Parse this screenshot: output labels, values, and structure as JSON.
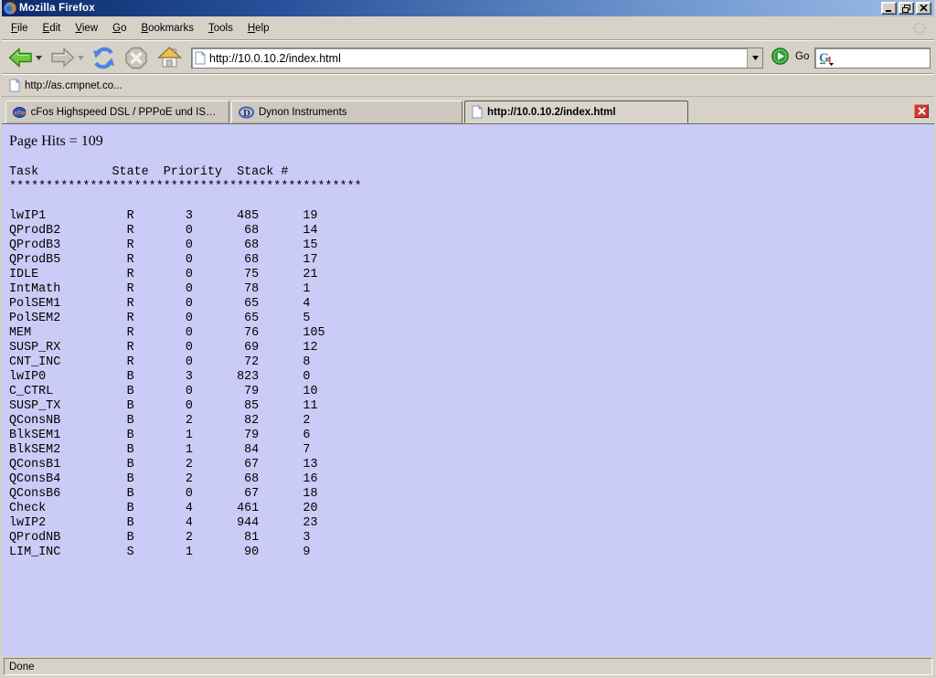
{
  "window": {
    "title": "Mozilla Firefox",
    "controls": [
      "minimize",
      "restore",
      "close"
    ],
    "status": "Done"
  },
  "menu_bar": {
    "items": [
      "File",
      "Edit",
      "View",
      "Go",
      "Bookmarks",
      "Tools",
      "Help"
    ]
  },
  "nav_toolbar": {
    "url_value": "http://10.0.10.2/index.html",
    "go_label": "Go",
    "icons": [
      "back-icon",
      "forward-icon",
      "reload-icon",
      "stop-icon",
      "home-icon",
      "go-icon",
      "google-search-icon"
    ]
  },
  "bookmarks_bar": {
    "items": [
      "http://as.cmpnet.co..."
    ]
  },
  "tab_bar": {
    "tabs": [
      {
        "id": "cfos",
        "icon": "cfos-icon",
        "label": "cFos Highspeed DSL / PPPoE und ISDN CAP...",
        "active": false
      },
      {
        "id": "dynon",
        "icon": "dynon-icon",
        "label": "Dynon Instruments",
        "active": false
      },
      {
        "id": "current",
        "icon": "page-icon",
        "label": "http://10.0.10.2/index.html",
        "active": true
      }
    ]
  },
  "page": {
    "page_hits": "Page Hits = 109",
    "table": {
      "header": {
        "task": "Task",
        "state": "State",
        "priority": "Priority",
        "stack": "Stack #"
      },
      "separator": "************************************************",
      "rows": [
        {
          "task": "lwIP1",
          "state": "R",
          "priority": "3",
          "stack": "485",
          "num": "19"
        },
        {
          "task": "QProdB2",
          "state": "R",
          "priority": "0",
          "stack": "68",
          "num": "14"
        },
        {
          "task": "QProdB3",
          "state": "R",
          "priority": "0",
          "stack": "68",
          "num": "15"
        },
        {
          "task": "QProdB5",
          "state": "R",
          "priority": "0",
          "stack": "68",
          "num": "17"
        },
        {
          "task": "IDLE",
          "state": "R",
          "priority": "0",
          "stack": "75",
          "num": "21"
        },
        {
          "task": "IntMath",
          "state": "R",
          "priority": "0",
          "stack": "78",
          "num": "1"
        },
        {
          "task": "PolSEM1",
          "state": "R",
          "priority": "0",
          "stack": "65",
          "num": "4"
        },
        {
          "task": "PolSEM2",
          "state": "R",
          "priority": "0",
          "stack": "65",
          "num": "5"
        },
        {
          "task": "MEM",
          "state": "R",
          "priority": "0",
          "stack": "76",
          "num": "105"
        },
        {
          "task": "SUSP_RX",
          "state": "R",
          "priority": "0",
          "stack": "69",
          "num": "12"
        },
        {
          "task": "CNT_INC",
          "state": "R",
          "priority": "0",
          "stack": "72",
          "num": "8"
        },
        {
          "task": "lwIP0",
          "state": "B",
          "priority": "3",
          "stack": "823",
          "num": "0"
        },
        {
          "task": "C_CTRL",
          "state": "B",
          "priority": "0",
          "stack": "79",
          "num": "10"
        },
        {
          "task": "SUSP_TX",
          "state": "B",
          "priority": "0",
          "stack": "85",
          "num": "11"
        },
        {
          "task": "QConsNB",
          "state": "B",
          "priority": "2",
          "stack": "82",
          "num": "2"
        },
        {
          "task": "BlkSEM1",
          "state": "B",
          "priority": "1",
          "stack": "79",
          "num": "6"
        },
        {
          "task": "BlkSEM2",
          "state": "B",
          "priority": "1",
          "stack": "84",
          "num": "7"
        },
        {
          "task": "QConsB1",
          "state": "B",
          "priority": "2",
          "stack": "67",
          "num": "13"
        },
        {
          "task": "QConsB4",
          "state": "B",
          "priority": "2",
          "stack": "68",
          "num": "16"
        },
        {
          "task": "QConsB6",
          "state": "B",
          "priority": "0",
          "stack": "67",
          "num": "18"
        },
        {
          "task": "Check",
          "state": "B",
          "priority": "4",
          "stack": "461",
          "num": "20"
        },
        {
          "task": "lwIP2",
          "state": "B",
          "priority": "4",
          "stack": "944",
          "num": "23"
        },
        {
          "task": "QProdNB",
          "state": "B",
          "priority": "2",
          "stack": "81",
          "num": "3"
        },
        {
          "task": "LIM_INC",
          "state": "S",
          "priority": "1",
          "stack": "90",
          "num": "9"
        }
      ]
    }
  },
  "colors": {
    "content_bg": "#cbcbf8",
    "chrome_bg": "#d6d2c8",
    "title_gradient_from": "#0c2a6b",
    "title_gradient_to": "#9dbce8",
    "tab_close_red": "#d03a2e",
    "go_green": "#2fa033"
  }
}
